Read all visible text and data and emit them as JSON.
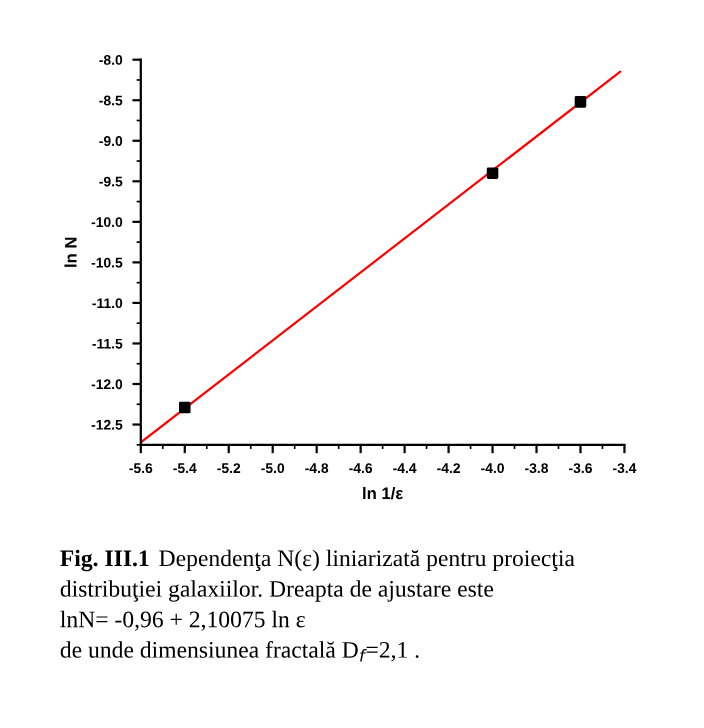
{
  "chart_data": {
    "type": "scatter",
    "xlabel": "ln 1/ε",
    "ylabel": "ln N",
    "xlim": [
      -5.6,
      -3.4
    ],
    "ylim": [
      -12.75,
      -8.0
    ],
    "xticks": [
      {
        "value": -5.6,
        "label": "-5.6"
      },
      {
        "value": -5.4,
        "label": "-5.4"
      },
      {
        "value": -5.2,
        "label": "-5.2"
      },
      {
        "value": -5.0,
        "label": "-5.0"
      },
      {
        "value": -4.8,
        "label": "-4.8"
      },
      {
        "value": -4.6,
        "label": "-4.6"
      },
      {
        "value": -4.4,
        "label": "-4.4"
      },
      {
        "value": -4.2,
        "label": "-4.2"
      },
      {
        "value": -4.0,
        "label": "-4.0"
      },
      {
        "value": -3.8,
        "label": "-3.8"
      },
      {
        "value": -3.6,
        "label": "-3.6"
      },
      {
        "value": -3.4,
        "label": "-3.4"
      }
    ],
    "yticks": [
      {
        "value": -8.0,
        "label": "-8.0"
      },
      -8.5,
      {
        "value": -9.0,
        "label": "-9.0"
      },
      -9.5,
      {
        "value": -10.0,
        "label": "-10.0"
      },
      -10.5,
      {
        "value": -11.0,
        "label": "-11.0"
      },
      -11.5,
      {
        "value": -12.0,
        "label": "-12.0"
      },
      -12.5
    ],
    "grid": false,
    "legend": false,
    "series": [
      {
        "color": "#000000",
        "marker": "square",
        "x": [
          -5.4,
          -4.0,
          -3.6
        ],
        "values": [
          -12.29,
          -9.4,
          -8.52
        ]
      },
      {
        "type": "line",
        "color": "#ff0000",
        "marker": "none",
        "line_style": "solid",
        "x": [
          -5.6,
          -3.42
        ],
        "values": [
          -12.72,
          -8.15
        ]
      }
    ],
    "annotations": [
      "Fig. III.1",
      "Dependenţa N(ε) liniarizată pentru proiecţia",
      "distribuţiei galaxiilor. Dreapta de ajustare este",
      "lnN= -0,96 + 2,10075 ln ε",
      "de unde dimensiunea fractală D$_{f}$=2,1 ."
    ]
  }
}
